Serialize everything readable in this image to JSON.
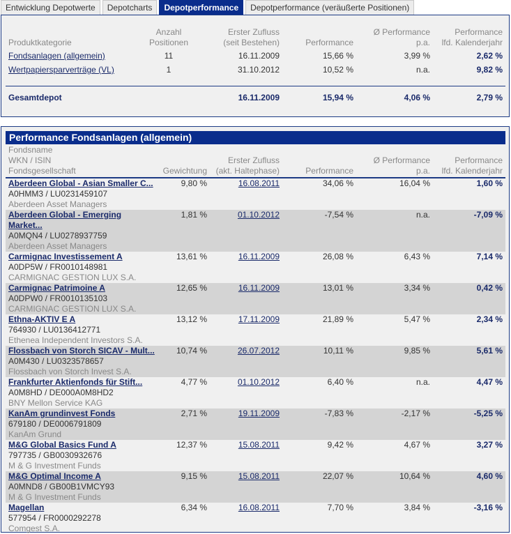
{
  "tabs": [
    "Entwicklung Depotwerte",
    "Depotcharts",
    "Depotperformance",
    "Depotperformance (veräußerte Positionen)"
  ],
  "active_tab": "Depotperformance",
  "summary": {
    "headers": {
      "kategorie": "Produktkategorie",
      "anzahl1": "Anzahl",
      "anzahl2": "Positionen",
      "zufluss1": "Erster Zufluss",
      "zufluss2": "(seit Bestehen)",
      "perf": "Performance",
      "pa1": "Ø Performance",
      "pa2": "p.a.",
      "lfd1": "Performance",
      "lfd2": "lfd. Kalenderjahr"
    },
    "rows": [
      {
        "name": "Fondsanlagen (allgemein)",
        "anzahl": "11",
        "zufluss": "16.11.2009",
        "perf": "15,66 %",
        "pa": "3,99 %",
        "lfd": "2,62 %"
      },
      {
        "name": "Wertpapiersparverträge (VL)",
        "anzahl": "1",
        "zufluss": "31.10.2012",
        "perf": "10,52 %",
        "pa": "n.a.",
        "lfd": "9,82 %"
      }
    ],
    "total": {
      "name": "Gesamtdepot",
      "zufluss": "16.11.2009",
      "perf": "15,94 %",
      "pa": "4,06 %",
      "lfd": "2,79 %"
    }
  },
  "funds": {
    "title": "Performance Fondsanlagen (allgemein)",
    "headers": {
      "name1": "Fondsname",
      "name2": "WKN / ISIN",
      "name3": "Fondsgesellschaft",
      "gew": "Gewichtung",
      "zufluss1": "Erster Zufluss",
      "zufluss2": "(akt. Haltephase)",
      "perf": "Performance",
      "pa1": "Ø Performance",
      "pa2": "p.a.",
      "lfd1": "Performance",
      "lfd2": "lfd. Kalenderjahr"
    },
    "rows": [
      {
        "name": "Aberdeen Global - Asian Smaller C...",
        "ids": "A0HMM3 /  LU0231459107",
        "company": "Aberdeen Asset Managers",
        "gew": "9,80 %",
        "zufluss": "16.08.2011",
        "perf": "34,06 %",
        "pa": "16,04 %",
        "lfd": "1,60 %"
      },
      {
        "name": "Aberdeen Global - Emerging Market...",
        "ids": "A0MQN4 /  LU0278937759",
        "company": "Aberdeen Asset Managers",
        "gew": "1,81 %",
        "zufluss": "01.10.2012",
        "perf": "-7,54 %",
        "pa": "n.a.",
        "lfd": "-7,09 %"
      },
      {
        "name": "Carmignac Investissement A",
        "ids": "A0DP5W /  FR0010148981",
        "company": "CARMIGNAC GESTION LUX S.A.",
        "gew": "13,61 %",
        "zufluss": "16.11.2009",
        "perf": "26,08 %",
        "pa": "6,43 %",
        "lfd": "7,14 %"
      },
      {
        "name": "Carmignac Patrimoine A",
        "ids": "A0DPW0 /  FR0010135103",
        "company": "CARMIGNAC GESTION LUX S.A.",
        "gew": "12,65 %",
        "zufluss": "16.11.2009",
        "perf": "13,01 %",
        "pa": "3,34 %",
        "lfd": "0,42 %"
      },
      {
        "name": "Ethna-AKTIV E A",
        "ids": "764930 /  LU0136412771",
        "company": "Ethenea Independent Investors S.A.",
        "gew": "13,12 %",
        "zufluss": "17.11.2009",
        "perf": "21,89 %",
        "pa": "5,47 %",
        "lfd": "2,34 %"
      },
      {
        "name": "Flossbach von Storch SICAV - Mult...",
        "ids": "A0M430 /  LU0323578657",
        "company": "Flossbach von Storch Invest S.A.",
        "gew": "10,74 %",
        "zufluss": "26.07.2012",
        "perf": "10,11 %",
        "pa": "9,85 %",
        "lfd": "5,61 %"
      },
      {
        "name": "Frankfurter Aktienfonds für Stift...",
        "ids": "A0M8HD /  DE000A0M8HD2",
        "company": "BNY Mellon Service KAG",
        "gew": "4,77 %",
        "zufluss": "01.10.2012",
        "perf": "6,40 %",
        "pa": "n.a.",
        "lfd": "4,47 %"
      },
      {
        "name": "KanAm grundinvest Fonds",
        "ids": "679180 /  DE0006791809",
        "company": "KanAm Grund",
        "gew": "2,71 %",
        "zufluss": "19.11.2009",
        "perf": "-7,83 %",
        "pa": "-2,17 %",
        "lfd": "-5,25 %"
      },
      {
        "name": "M&G Global Basics Fund A",
        "ids": "797735 /  GB0030932676",
        "company": "M & G Investment Funds",
        "gew": "12,37 %",
        "zufluss": "15.08.2011",
        "perf": "9,42 %",
        "pa": "4,67 %",
        "lfd": "3,27 %"
      },
      {
        "name": "M&G Optimal Income A",
        "ids": "A0MND8 /  GB00B1VMCY93",
        "company": "M & G Investment Funds",
        "gew": "9,15 %",
        "zufluss": "15.08.2011",
        "perf": "22,07 %",
        "pa": "10,64 %",
        "lfd": "4,60 %"
      },
      {
        "name": "Magellan",
        "ids": "577954 /  FR0000292278",
        "company": "Comgest S.A.",
        "gew": "6,34 %",
        "zufluss": "16.08.2011",
        "perf": "7,70 %",
        "pa": "3,84 %",
        "lfd": "-3,16 %"
      }
    ]
  },
  "colors": {
    "accent": "#0a2d8c",
    "panel": "#f0f0f0",
    "row_alt": "#d4d4d4"
  }
}
